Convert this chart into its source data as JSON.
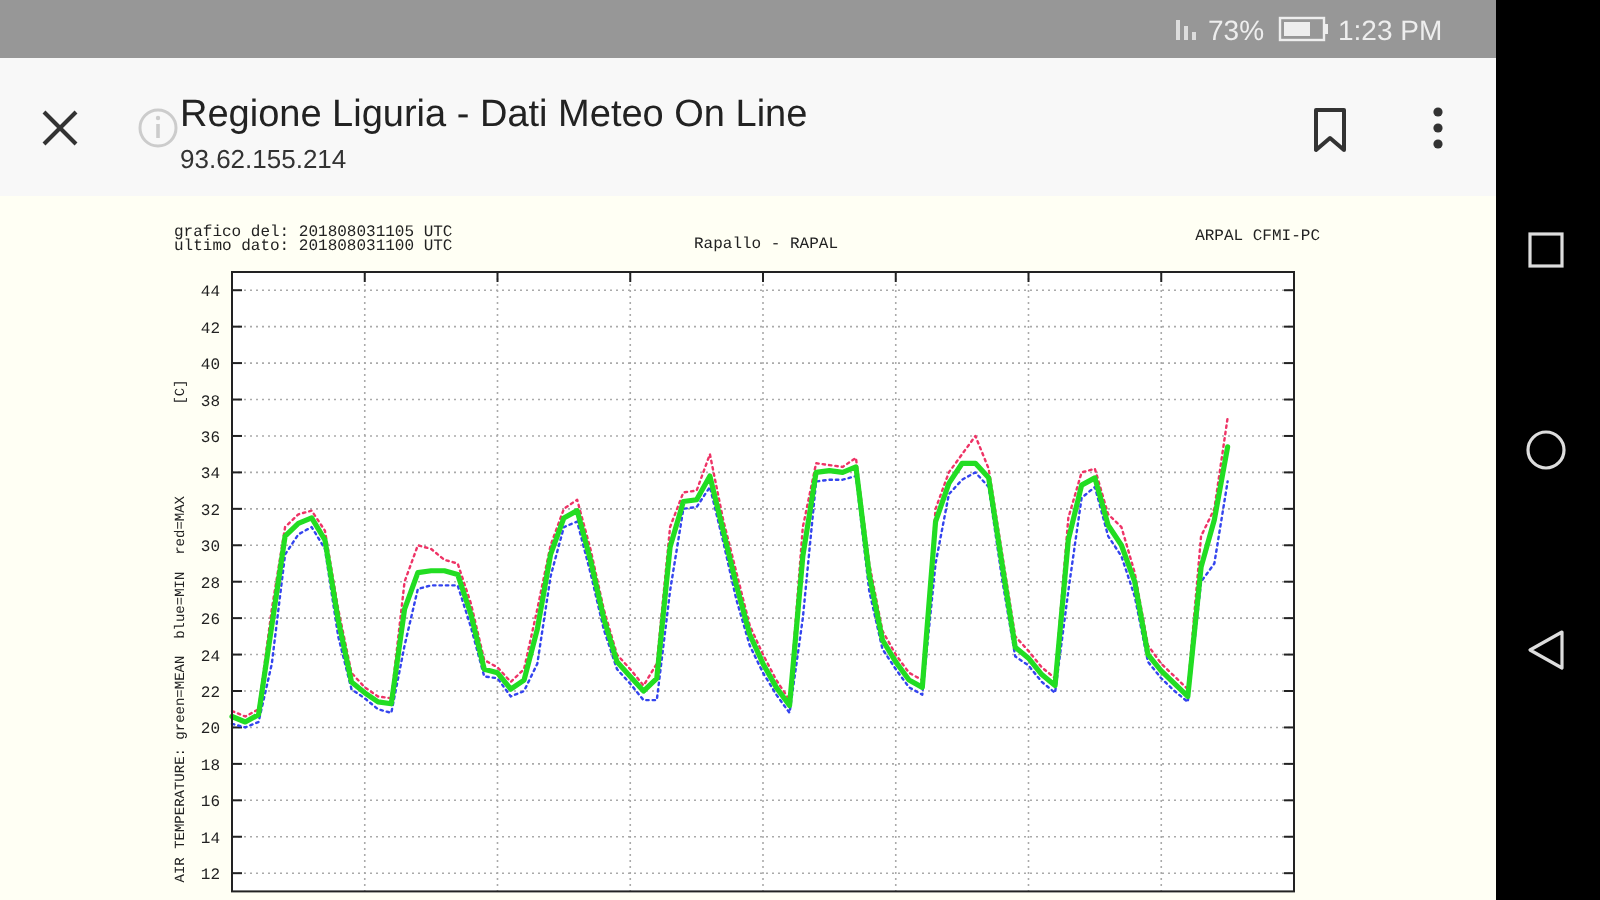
{
  "chart_data": {
    "type": "line",
    "title": "Rapallo - RAPAL",
    "ylabel": "AIR TEMPERATURE: green=MEAN  blue=MIN  red=MAX",
    "annotations": [
      "grafico del: 201808031105 UTC",
      "ultimo dato: 201808031100 UTC",
      "ARPAL CFMI-PC",
      "[C]",
      "Regione Liguria - Dati Meteo On Line",
      "93.62.155.214",
      "73%",
      "1:23 PM"
    ],
    "categories": [
      null,
      null,
      null,
      null,
      null,
      null,
      null,
      null,
      null,
      null,
      null,
      null,
      null,
      null,
      null,
      null,
      null,
      null,
      null,
      null,
      null,
      null,
      null,
      null,
      null,
      null,
      null,
      null,
      null,
      null,
      null,
      null,
      null,
      null,
      null,
      null,
      null,
      null,
      null,
      null,
      null,
      null,
      null,
      null,
      null,
      null,
      null,
      null,
      null,
      null,
      null,
      null,
      null,
      null,
      null,
      null,
      null,
      null,
      null,
      null,
      null,
      null,
      null,
      null,
      null,
      null,
      null,
      null,
      null,
      null,
      null,
      null,
      null,
      null,
      null,
      null,
      null,
      null,
      null,
      null,
      null
    ],
    "series": [
      {
        "color": "#3344ee",
        "line_style": "dotted",
        "values": [
          20.2,
          20.0,
          20.3,
          23.5,
          29.5,
          30.6,
          31.0,
          29.8,
          25.0,
          22.1,
          21.6,
          21.0,
          20.8,
          24.5,
          27.6,
          27.8,
          27.8,
          27.8,
          25.5,
          22.8,
          22.7,
          21.7,
          22.0,
          23.5,
          28.3,
          31.0,
          31.3,
          28.5,
          25.4,
          23.2,
          22.4,
          21.5,
          21.5,
          27.5,
          32.0,
          32.1,
          33.2,
          30.2,
          27.0,
          24.5,
          23.0,
          21.8,
          20.8,
          26.0,
          33.5,
          33.6,
          33.6,
          33.8,
          27.5,
          24.3,
          23.2,
          22.2,
          21.8,
          29.0,
          32.8,
          33.6,
          34.0,
          33.2,
          28.2,
          23.9,
          23.4,
          22.5,
          21.9,
          27.5,
          32.6,
          33.2,
          30.5,
          29.4,
          27.2,
          23.6,
          22.7,
          22.0,
          21.4,
          28.0,
          29.0,
          33.5,
          null,
          null,
          null,
          null,
          null
        ]
      },
      {
        "color": "#ee3366",
        "line_style": "dotted",
        "values": [
          20.9,
          20.6,
          21.0,
          26.5,
          31.0,
          31.7,
          31.9,
          30.8,
          26.5,
          23.0,
          22.2,
          21.7,
          21.6,
          28.0,
          30.0,
          29.8,
          29.2,
          29.0,
          26.8,
          23.7,
          23.3,
          22.5,
          23.2,
          26.5,
          30.0,
          32.0,
          32.5,
          29.8,
          26.5,
          24.0,
          23.2,
          22.3,
          23.5,
          31.0,
          32.9,
          33.0,
          35.0,
          31.4,
          28.5,
          25.6,
          24.0,
          22.6,
          21.5,
          31.0,
          34.5,
          34.4,
          34.3,
          34.8,
          29.0,
          25.3,
          24.0,
          23.0,
          22.6,
          32.0,
          34.0,
          35.0,
          36.0,
          34.2,
          29.6,
          25.0,
          24.2,
          23.3,
          22.7,
          31.5,
          34.0,
          34.2,
          31.7,
          31.0,
          28.5,
          24.5,
          23.5,
          22.8,
          22.1,
          30.5,
          32.0,
          37.0,
          null,
          null,
          null,
          null,
          null
        ]
      },
      {
        "color": "#22dd22",
        "line_style": "solid",
        "values": [
          20.6,
          20.3,
          20.7,
          25.6,
          30.5,
          31.2,
          31.5,
          30.3,
          25.9,
          22.5,
          21.9,
          21.4,
          21.3,
          26.5,
          28.5,
          28.6,
          28.6,
          28.4,
          26.2,
          23.2,
          23.0,
          22.1,
          22.6,
          25.4,
          29.5,
          31.5,
          31.9,
          29.2,
          26.0,
          23.6,
          22.8,
          22.0,
          22.7,
          29.9,
          32.4,
          32.5,
          33.8,
          30.8,
          27.8,
          25.1,
          23.5,
          22.2,
          21.2,
          29.4,
          34.0,
          34.1,
          34.0,
          34.3,
          28.4,
          24.8,
          23.6,
          22.6,
          22.2,
          31.3,
          33.4,
          34.5,
          34.5,
          33.7,
          29.0,
          24.4,
          23.8,
          22.9,
          22.3,
          30.3,
          33.3,
          33.7,
          31.1,
          30.0,
          28.0,
          24.0,
          23.1,
          22.4,
          21.7,
          28.8,
          31.4,
          35.4,
          null,
          null,
          null,
          null,
          null
        ]
      }
    ],
    "ylim": [
      11,
      45
    ],
    "yticks": [
      12,
      14,
      16,
      18,
      20,
      22,
      24,
      26,
      28,
      30,
      32,
      34,
      36,
      38,
      40,
      42,
      44
    ],
    "tick_labels": "y",
    "grid": true,
    "marker": "none"
  }
}
